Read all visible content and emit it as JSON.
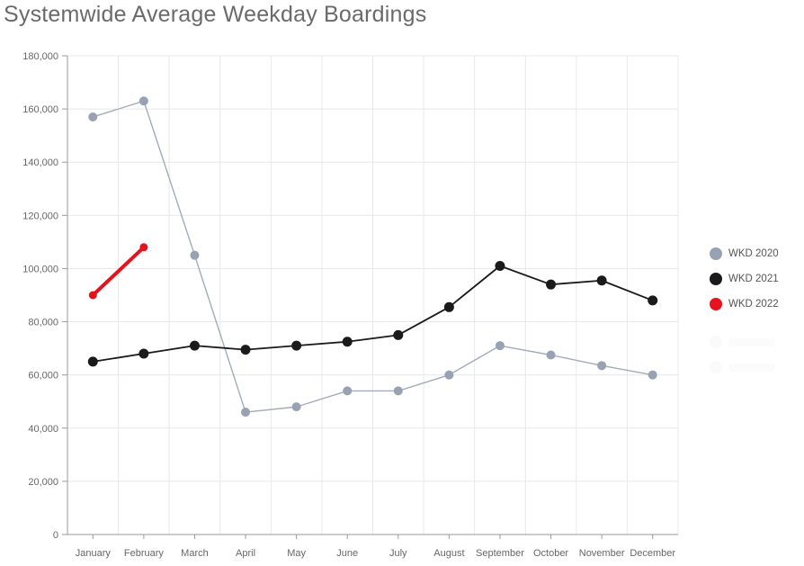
{
  "title": "Systemwide Average Weekday Boardings",
  "chart_data": {
    "type": "line",
    "categories": [
      "January",
      "February",
      "March",
      "April",
      "May",
      "June",
      "July",
      "August",
      "September",
      "October",
      "November",
      "December"
    ],
    "series": [
      {
        "name": "WKD 2020",
        "color": "#99a2b2",
        "line_color": "#a3abba",
        "line_width": 1.4,
        "marker_radius": 5,
        "values": [
          157000,
          163000,
          105000,
          46000,
          48000,
          54000,
          54000,
          60000,
          71000,
          67500,
          63500,
          60000
        ]
      },
      {
        "name": "WKD 2021",
        "color": "#1a1a1a",
        "line_color": "#1a1a1a",
        "line_width": 1.8,
        "marker_radius": 5.5,
        "values": [
          65000,
          68000,
          71000,
          69500,
          71000,
          72500,
          75000,
          85500,
          101000,
          94000,
          95500,
          88000
        ]
      },
      {
        "name": "WKD 2022",
        "color": "#e6121d",
        "line_color": "#e6121d",
        "line_width": 4,
        "marker_radius": 4.5,
        "values": [
          90000,
          108000
        ]
      }
    ],
    "ylim": [
      0,
      180000
    ],
    "y_tick_step": 20000,
    "y_tick_labels": [
      "0",
      "20,000",
      "40,000",
      "60,000",
      "80,000",
      "100,000",
      "120,000",
      "140,000",
      "160,000",
      "180,000"
    ],
    "xlabel": "",
    "ylabel": "",
    "grid": true,
    "legend_position": "right"
  },
  "legend": {
    "items": [
      {
        "label": "WKD 2020",
        "color": "#99a2b2"
      },
      {
        "label": "WKD 2021",
        "color": "#1a1a1a"
      },
      {
        "label": "WKD 2022",
        "color": "#e6121d"
      }
    ],
    "disabled_items": [
      {
        "label": ""
      },
      {
        "label": ""
      }
    ]
  },
  "style_colors": {
    "axis": "#9a9a9a",
    "gridline": "#e8e8e8",
    "tick_label": "#666666",
    "title": "#6a6a6a"
  }
}
